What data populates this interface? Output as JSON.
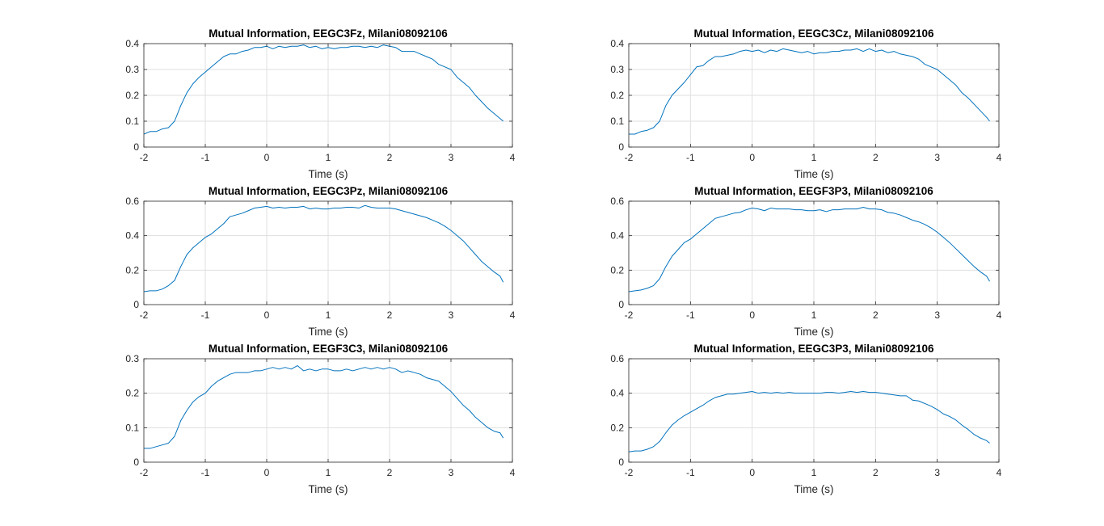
{
  "figure": {
    "background": "#ffffff",
    "line_color": "#0072BD",
    "grid_color": "#dfdfdf"
  },
  "chart_data": [
    {
      "type": "line",
      "title": "Mutual Information, EEGC3Fz, Milani08092106",
      "xlabel": "Time (s)",
      "ylabel": "",
      "xlim": [
        -2,
        4
      ],
      "ylim": [
        0,
        0.4
      ],
      "xticks": [
        -2,
        -1,
        0,
        1,
        2,
        3,
        4
      ],
      "yticks": [
        0,
        0.1,
        0.2,
        0.3,
        0.4
      ],
      "grid": true,
      "x": [
        -2,
        -1.9,
        -1.8,
        -1.7,
        -1.6,
        -1.5,
        -1.4,
        -1.3,
        -1.2,
        -1.1,
        -1.0,
        -0.9,
        -0.8,
        -0.7,
        -0.6,
        -0.5,
        -0.4,
        -0.3,
        -0.2,
        -0.1,
        0,
        0.1,
        0.2,
        0.3,
        0.4,
        0.5,
        0.6,
        0.7,
        0.8,
        0.9,
        1.0,
        1.1,
        1.2,
        1.3,
        1.4,
        1.5,
        1.6,
        1.7,
        1.8,
        1.9,
        2.0,
        2.1,
        2.2,
        2.3,
        2.4,
        2.5,
        2.6,
        2.7,
        2.8,
        2.9,
        3.0,
        3.1,
        3.2,
        3.3,
        3.4,
        3.5,
        3.6,
        3.7,
        3.8,
        3.85
      ],
      "series": [
        {
          "values": [
            0.05,
            0.06,
            0.06,
            0.07,
            0.075,
            0.1,
            0.16,
            0.21,
            0.245,
            0.27,
            0.29,
            0.31,
            0.33,
            0.35,
            0.36,
            0.36,
            0.37,
            0.375,
            0.385,
            0.385,
            0.39,
            0.38,
            0.39,
            0.385,
            0.39,
            0.39,
            0.395,
            0.385,
            0.39,
            0.38,
            0.385,
            0.38,
            0.385,
            0.385,
            0.39,
            0.39,
            0.385,
            0.39,
            0.385,
            0.395,
            0.39,
            0.385,
            0.37,
            0.37,
            0.37,
            0.36,
            0.35,
            0.34,
            0.32,
            0.31,
            0.3,
            0.27,
            0.25,
            0.23,
            0.2,
            0.175,
            0.15,
            0.13,
            0.11,
            0.1
          ]
        }
      ]
    },
    {
      "type": "line",
      "title": "Mutual Information, EEGC3Cz, Milani08092106",
      "xlabel": "Time (s)",
      "ylabel": "",
      "xlim": [
        -2,
        4
      ],
      "ylim": [
        0,
        0.4
      ],
      "xticks": [
        -2,
        -1,
        0,
        1,
        2,
        3,
        4
      ],
      "yticks": [
        0,
        0.1,
        0.2,
        0.3,
        0.4
      ],
      "grid": true,
      "x": [
        -2,
        -1.9,
        -1.8,
        -1.7,
        -1.6,
        -1.5,
        -1.4,
        -1.3,
        -1.2,
        -1.1,
        -1.0,
        -0.9,
        -0.8,
        -0.7,
        -0.6,
        -0.5,
        -0.4,
        -0.3,
        -0.2,
        -0.1,
        0,
        0.1,
        0.2,
        0.3,
        0.4,
        0.5,
        0.6,
        0.7,
        0.8,
        0.9,
        1.0,
        1.1,
        1.2,
        1.3,
        1.4,
        1.5,
        1.6,
        1.7,
        1.8,
        1.9,
        2.0,
        2.1,
        2.2,
        2.3,
        2.4,
        2.5,
        2.6,
        2.7,
        2.8,
        2.9,
        3.0,
        3.1,
        3.2,
        3.3,
        3.4,
        3.5,
        3.6,
        3.7,
        3.8,
        3.85
      ],
      "series": [
        {
          "values": [
            0.05,
            0.05,
            0.06,
            0.065,
            0.075,
            0.1,
            0.16,
            0.2,
            0.225,
            0.25,
            0.28,
            0.31,
            0.315,
            0.335,
            0.35,
            0.35,
            0.355,
            0.36,
            0.37,
            0.375,
            0.37,
            0.375,
            0.365,
            0.375,
            0.37,
            0.38,
            0.375,
            0.37,
            0.365,
            0.37,
            0.36,
            0.365,
            0.365,
            0.37,
            0.37,
            0.375,
            0.375,
            0.38,
            0.37,
            0.38,
            0.37,
            0.375,
            0.365,
            0.37,
            0.36,
            0.355,
            0.35,
            0.34,
            0.32,
            0.31,
            0.3,
            0.28,
            0.26,
            0.24,
            0.21,
            0.19,
            0.165,
            0.14,
            0.115,
            0.1
          ]
        }
      ]
    },
    {
      "type": "line",
      "title": "Mutual Information, EEGC3Pz, Milani08092106",
      "xlabel": "Time (s)",
      "ylabel": "",
      "xlim": [
        -2,
        4
      ],
      "ylim": [
        0,
        0.6
      ],
      "xticks": [
        -2,
        -1,
        0,
        1,
        2,
        3,
        4
      ],
      "yticks": [
        0,
        0.2,
        0.4,
        0.6
      ],
      "grid": true,
      "x": [
        -2,
        -1.9,
        -1.8,
        -1.7,
        -1.6,
        -1.5,
        -1.4,
        -1.3,
        -1.2,
        -1.1,
        -1.0,
        -0.9,
        -0.8,
        -0.7,
        -0.6,
        -0.5,
        -0.4,
        -0.3,
        -0.2,
        -0.1,
        0,
        0.1,
        0.2,
        0.3,
        0.4,
        0.5,
        0.6,
        0.7,
        0.8,
        0.9,
        1.0,
        1.1,
        1.2,
        1.3,
        1.4,
        1.5,
        1.6,
        1.7,
        1.8,
        1.9,
        2.0,
        2.1,
        2.2,
        2.3,
        2.4,
        2.5,
        2.6,
        2.7,
        2.8,
        2.9,
        3.0,
        3.1,
        3.2,
        3.3,
        3.4,
        3.5,
        3.6,
        3.7,
        3.8,
        3.85
      ],
      "series": [
        {
          "values": [
            0.075,
            0.08,
            0.08,
            0.09,
            0.11,
            0.14,
            0.22,
            0.29,
            0.33,
            0.36,
            0.39,
            0.41,
            0.44,
            0.47,
            0.51,
            0.52,
            0.53,
            0.545,
            0.56,
            0.565,
            0.57,
            0.56,
            0.565,
            0.56,
            0.565,
            0.565,
            0.57,
            0.555,
            0.56,
            0.555,
            0.555,
            0.56,
            0.56,
            0.565,
            0.565,
            0.56,
            0.575,
            0.565,
            0.56,
            0.56,
            0.56,
            0.555,
            0.545,
            0.535,
            0.525,
            0.515,
            0.505,
            0.49,
            0.475,
            0.455,
            0.43,
            0.4,
            0.37,
            0.33,
            0.29,
            0.25,
            0.22,
            0.19,
            0.165,
            0.13
          ]
        }
      ]
    },
    {
      "type": "line",
      "title": "Mutual Information, EEGF3P3, Milani08092106",
      "xlabel": "Time (s)",
      "ylabel": "",
      "xlim": [
        -2,
        4
      ],
      "ylim": [
        0,
        0.6
      ],
      "xticks": [
        -2,
        -1,
        0,
        1,
        2,
        3,
        4
      ],
      "yticks": [
        0,
        0.2,
        0.4,
        0.6
      ],
      "grid": true,
      "x": [
        -2,
        -1.9,
        -1.8,
        -1.7,
        -1.6,
        -1.5,
        -1.4,
        -1.3,
        -1.2,
        -1.1,
        -1.0,
        -0.9,
        -0.8,
        -0.7,
        -0.6,
        -0.5,
        -0.4,
        -0.3,
        -0.2,
        -0.1,
        0,
        0.1,
        0.2,
        0.3,
        0.4,
        0.5,
        0.6,
        0.7,
        0.8,
        0.9,
        1.0,
        1.1,
        1.2,
        1.3,
        1.4,
        1.5,
        1.6,
        1.7,
        1.8,
        1.9,
        2.0,
        2.1,
        2.2,
        2.3,
        2.4,
        2.5,
        2.6,
        2.7,
        2.8,
        2.9,
        3.0,
        3.1,
        3.2,
        3.3,
        3.4,
        3.5,
        3.6,
        3.7,
        3.8,
        3.85
      ],
      "series": [
        {
          "values": [
            0.075,
            0.08,
            0.085,
            0.095,
            0.11,
            0.15,
            0.22,
            0.28,
            0.32,
            0.36,
            0.38,
            0.41,
            0.44,
            0.47,
            0.5,
            0.51,
            0.52,
            0.53,
            0.535,
            0.55,
            0.56,
            0.555,
            0.545,
            0.56,
            0.555,
            0.555,
            0.555,
            0.55,
            0.55,
            0.545,
            0.545,
            0.55,
            0.54,
            0.55,
            0.55,
            0.555,
            0.555,
            0.555,
            0.565,
            0.555,
            0.555,
            0.55,
            0.535,
            0.53,
            0.52,
            0.505,
            0.49,
            0.48,
            0.465,
            0.445,
            0.42,
            0.39,
            0.36,
            0.325,
            0.29,
            0.255,
            0.22,
            0.19,
            0.165,
            0.135
          ]
        }
      ]
    },
    {
      "type": "line",
      "title": "Mutual Information, EEGF3C3, Milani08092106",
      "xlabel": "Time (s)",
      "ylabel": "",
      "xlim": [
        -2,
        4
      ],
      "ylim": [
        0,
        0.3
      ],
      "xticks": [
        -2,
        -1,
        0,
        1,
        2,
        3,
        4
      ],
      "yticks": [
        0,
        0.1,
        0.2,
        0.3
      ],
      "grid": true,
      "x": [
        -2,
        -1.9,
        -1.8,
        -1.7,
        -1.6,
        -1.5,
        -1.4,
        -1.3,
        -1.2,
        -1.1,
        -1.0,
        -0.9,
        -0.8,
        -0.7,
        -0.6,
        -0.5,
        -0.4,
        -0.3,
        -0.2,
        -0.1,
        0,
        0.1,
        0.2,
        0.3,
        0.4,
        0.5,
        0.6,
        0.7,
        0.8,
        0.9,
        1.0,
        1.1,
        1.2,
        1.3,
        1.4,
        1.5,
        1.6,
        1.7,
        1.8,
        1.9,
        2.0,
        2.1,
        2.2,
        2.3,
        2.4,
        2.5,
        2.6,
        2.7,
        2.8,
        2.9,
        3.0,
        3.1,
        3.2,
        3.3,
        3.4,
        3.5,
        3.6,
        3.7,
        3.8,
        3.85
      ],
      "series": [
        {
          "values": [
            0.04,
            0.04,
            0.045,
            0.05,
            0.055,
            0.075,
            0.12,
            0.15,
            0.175,
            0.19,
            0.2,
            0.22,
            0.235,
            0.245,
            0.255,
            0.26,
            0.26,
            0.26,
            0.265,
            0.265,
            0.27,
            0.275,
            0.27,
            0.275,
            0.27,
            0.28,
            0.265,
            0.27,
            0.265,
            0.27,
            0.27,
            0.265,
            0.265,
            0.27,
            0.265,
            0.27,
            0.275,
            0.27,
            0.275,
            0.27,
            0.275,
            0.27,
            0.26,
            0.265,
            0.26,
            0.255,
            0.245,
            0.24,
            0.235,
            0.22,
            0.205,
            0.185,
            0.165,
            0.15,
            0.13,
            0.115,
            0.1,
            0.09,
            0.085,
            0.07
          ]
        }
      ]
    },
    {
      "type": "line",
      "title": "Mutual Information, EEGC3P3, Milani08092106",
      "xlabel": "Time (s)",
      "ylabel": "",
      "xlim": [
        -2,
        4
      ],
      "ylim": [
        0,
        0.6
      ],
      "xticks": [
        -2,
        -1,
        0,
        1,
        2,
        3,
        4
      ],
      "yticks": [
        0,
        0.2,
        0.4,
        0.6
      ],
      "grid": true,
      "x": [
        -2,
        -1.9,
        -1.8,
        -1.7,
        -1.6,
        -1.5,
        -1.4,
        -1.3,
        -1.2,
        -1.1,
        -1.0,
        -0.9,
        -0.8,
        -0.7,
        -0.6,
        -0.5,
        -0.4,
        -0.3,
        -0.2,
        -0.1,
        0,
        0.1,
        0.2,
        0.3,
        0.4,
        0.5,
        0.6,
        0.7,
        0.8,
        0.9,
        1.0,
        1.1,
        1.2,
        1.3,
        1.4,
        1.5,
        1.6,
        1.7,
        1.8,
        1.9,
        2.0,
        2.1,
        2.2,
        2.3,
        2.4,
        2.5,
        2.6,
        2.7,
        2.8,
        2.9,
        3.0,
        3.1,
        3.2,
        3.3,
        3.4,
        3.5,
        3.6,
        3.7,
        3.8,
        3.85
      ],
      "series": [
        {
          "values": [
            0.06,
            0.065,
            0.065,
            0.075,
            0.09,
            0.12,
            0.17,
            0.215,
            0.245,
            0.27,
            0.29,
            0.31,
            0.33,
            0.355,
            0.375,
            0.385,
            0.395,
            0.395,
            0.4,
            0.405,
            0.41,
            0.4,
            0.405,
            0.4,
            0.405,
            0.4,
            0.405,
            0.4,
            0.4,
            0.4,
            0.4,
            0.4,
            0.405,
            0.405,
            0.4,
            0.405,
            0.41,
            0.405,
            0.41,
            0.405,
            0.405,
            0.4,
            0.395,
            0.39,
            0.385,
            0.385,
            0.36,
            0.355,
            0.34,
            0.325,
            0.305,
            0.28,
            0.265,
            0.245,
            0.215,
            0.19,
            0.16,
            0.14,
            0.125,
            0.11
          ]
        }
      ]
    }
  ]
}
